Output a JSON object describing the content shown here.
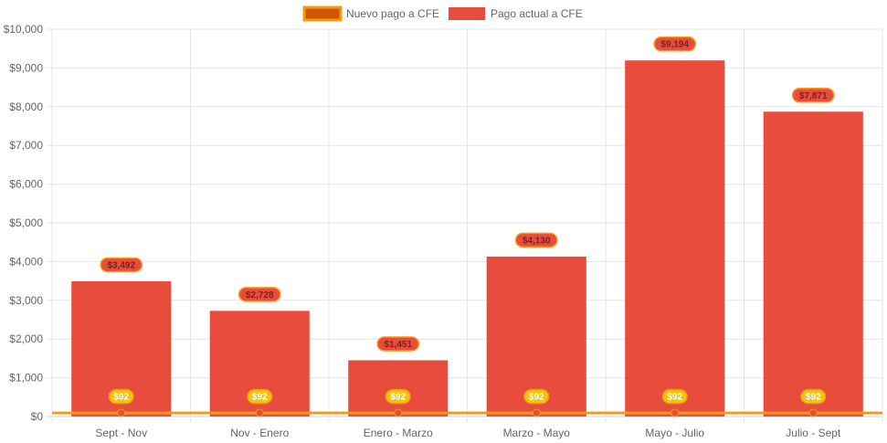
{
  "chart_data": {
    "type": "bar",
    "title": "",
    "xlabel": "",
    "ylabel": "",
    "categories": [
      "Sept - Nov",
      "Nov - Enero",
      "Enero - Marzo",
      "Marzo - Mayo",
      "Mayo - Julio",
      "Julio - Sept"
    ],
    "ylim": [
      0,
      10000
    ],
    "yticks": [
      0,
      1000,
      2000,
      3000,
      4000,
      5000,
      6000,
      7000,
      8000,
      9000,
      10000
    ],
    "ytick_labels": [
      "$0",
      "$1,000",
      "$2,000",
      "$3,000",
      "$4,000",
      "$5,000",
      "$6,000",
      "$7,000",
      "$8,000",
      "$9,000",
      "$10,000"
    ],
    "grid": true,
    "legend_position": "top-center",
    "series": [
      {
        "name": "Nuevo pago a CFE",
        "type": "line",
        "values": [
          92,
          92,
          92,
          92,
          92,
          92
        ],
        "labels": [
          "$92",
          "$92",
          "$92",
          "$92",
          "$92",
          "$92"
        ],
        "color": "#f39c12",
        "fill_color": "#d35400",
        "point_color": "#e74c3c",
        "label_bg": "#f1c40f",
        "label_text_color": "#ffffff"
      },
      {
        "name": "Pago actual a CFE",
        "type": "bar",
        "values": [
          3492,
          2728,
          1451,
          4130,
          9194,
          7871
        ],
        "labels": [
          "$3,492",
          "$2,728",
          "$1,451",
          "$4,130",
          "$9,194",
          "$7,871"
        ],
        "color": "#e74c3c",
        "label_bg": "#e74c3c",
        "label_border": "#f39c12",
        "label_text_color": "#7b241c"
      }
    ]
  }
}
